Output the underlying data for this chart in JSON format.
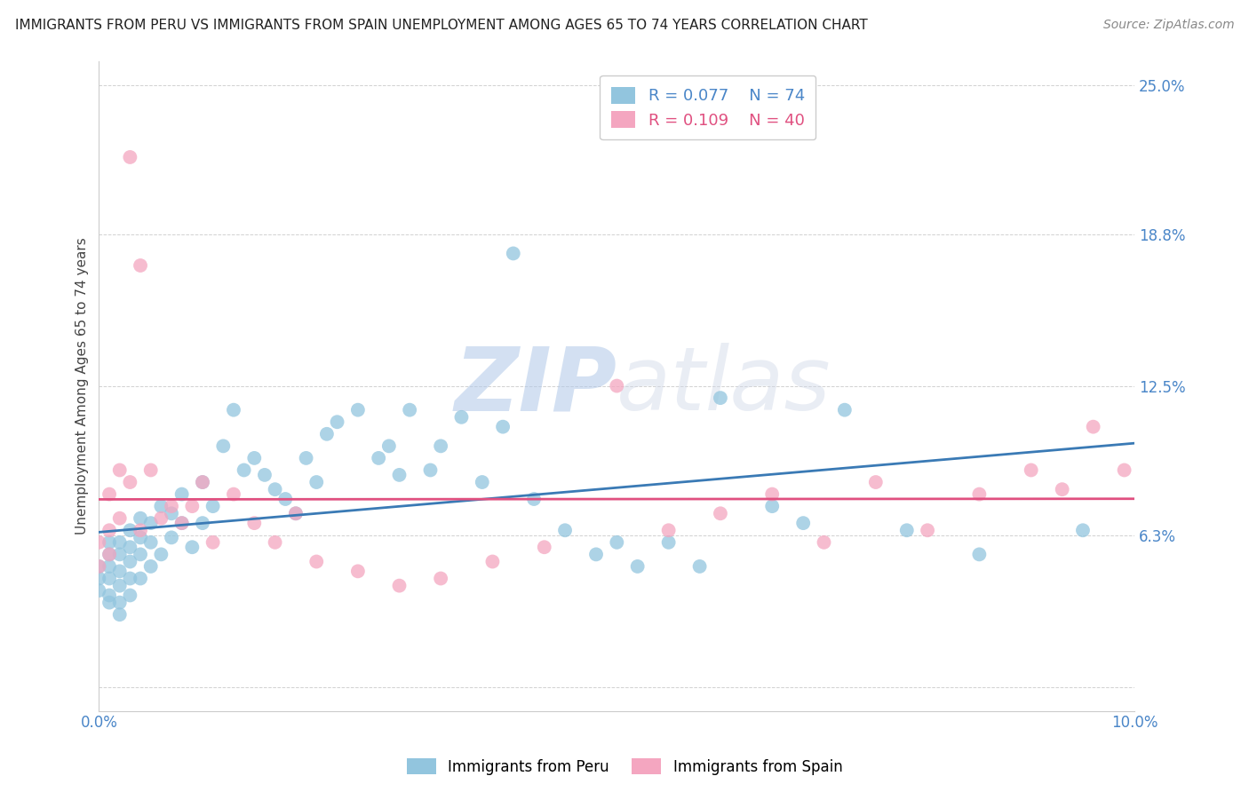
{
  "title": "IMMIGRANTS FROM PERU VS IMMIGRANTS FROM SPAIN UNEMPLOYMENT AMONG AGES 65 TO 74 YEARS CORRELATION CHART",
  "source": "Source: ZipAtlas.com",
  "ylabel": "Unemployment Among Ages 65 to 74 years",
  "xlim": [
    0.0,
    0.1
  ],
  "ylim": [
    -0.01,
    0.26
  ],
  "ytick_vals": [
    0.0,
    0.063,
    0.125,
    0.188,
    0.25
  ],
  "ytick_labels": [
    "",
    "6.3%",
    "12.5%",
    "18.8%",
    "25.0%"
  ],
  "xtick_vals": [
    0.0,
    0.025,
    0.05,
    0.075,
    0.1
  ],
  "xtick_labels": [
    "0.0%",
    "",
    "",
    "",
    "10.0%"
  ],
  "peru_color": "#92c5de",
  "spain_color": "#f4a6c0",
  "peru_line_color": "#3a7ab5",
  "spain_line_color": "#e05080",
  "peru_R": 0.077,
  "peru_N": 74,
  "spain_R": 0.109,
  "spain_N": 40,
  "watermark_zip": "ZIP",
  "watermark_atlas": "atlas",
  "background_color": "#ffffff",
  "grid_color": "#cccccc",
  "peru_scatter_x": [
    0.0,
    0.0,
    0.0,
    0.001,
    0.001,
    0.001,
    0.001,
    0.001,
    0.001,
    0.002,
    0.002,
    0.002,
    0.002,
    0.002,
    0.002,
    0.003,
    0.003,
    0.003,
    0.003,
    0.003,
    0.004,
    0.004,
    0.004,
    0.004,
    0.005,
    0.005,
    0.005,
    0.006,
    0.006,
    0.007,
    0.007,
    0.008,
    0.008,
    0.009,
    0.01,
    0.01,
    0.011,
    0.012,
    0.013,
    0.014,
    0.015,
    0.016,
    0.017,
    0.018,
    0.019,
    0.02,
    0.021,
    0.022,
    0.023,
    0.025,
    0.027,
    0.028,
    0.029,
    0.03,
    0.032,
    0.033,
    0.035,
    0.037,
    0.039,
    0.04,
    0.042,
    0.045,
    0.048,
    0.05,
    0.052,
    0.055,
    0.058,
    0.06,
    0.065,
    0.068,
    0.072,
    0.078,
    0.085,
    0.095
  ],
  "peru_scatter_y": [
    0.05,
    0.045,
    0.04,
    0.06,
    0.055,
    0.05,
    0.045,
    0.038,
    0.035,
    0.06,
    0.055,
    0.048,
    0.042,
    0.035,
    0.03,
    0.065,
    0.058,
    0.052,
    0.045,
    0.038,
    0.07,
    0.062,
    0.055,
    0.045,
    0.068,
    0.06,
    0.05,
    0.075,
    0.055,
    0.072,
    0.062,
    0.08,
    0.068,
    0.058,
    0.085,
    0.068,
    0.075,
    0.1,
    0.115,
    0.09,
    0.095,
    0.088,
    0.082,
    0.078,
    0.072,
    0.095,
    0.085,
    0.105,
    0.11,
    0.115,
    0.095,
    0.1,
    0.088,
    0.115,
    0.09,
    0.1,
    0.112,
    0.085,
    0.108,
    0.18,
    0.078,
    0.065,
    0.055,
    0.06,
    0.05,
    0.06,
    0.05,
    0.12,
    0.075,
    0.068,
    0.115,
    0.065,
    0.055,
    0.065
  ],
  "spain_scatter_x": [
    0.0,
    0.0,
    0.001,
    0.001,
    0.001,
    0.002,
    0.002,
    0.003,
    0.003,
    0.004,
    0.004,
    0.005,
    0.006,
    0.007,
    0.008,
    0.009,
    0.01,
    0.011,
    0.013,
    0.015,
    0.017,
    0.019,
    0.021,
    0.025,
    0.029,
    0.033,
    0.038,
    0.043,
    0.05,
    0.055,
    0.06,
    0.065,
    0.07,
    0.075,
    0.08,
    0.085,
    0.09,
    0.093,
    0.096,
    0.099
  ],
  "spain_scatter_y": [
    0.06,
    0.05,
    0.08,
    0.065,
    0.055,
    0.09,
    0.07,
    0.22,
    0.085,
    0.175,
    0.065,
    0.09,
    0.07,
    0.075,
    0.068,
    0.075,
    0.085,
    0.06,
    0.08,
    0.068,
    0.06,
    0.072,
    0.052,
    0.048,
    0.042,
    0.045,
    0.052,
    0.058,
    0.125,
    0.065,
    0.072,
    0.08,
    0.06,
    0.085,
    0.065,
    0.08,
    0.09,
    0.082,
    0.108,
    0.09
  ]
}
